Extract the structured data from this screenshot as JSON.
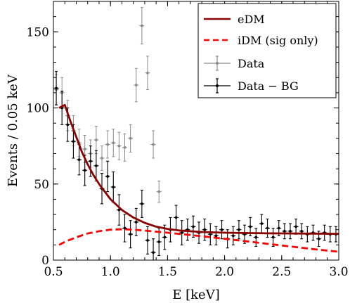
{
  "chart_data": {
    "type": "scatter",
    "xlabel": "E [keV]",
    "ylabel": "Events / 0.05 keV",
    "xlim": [
      0.5,
      3.0
    ],
    "ylim": [
      0,
      170
    ],
    "xticks": [
      "0.5",
      "1.0",
      "1.5",
      "2.0",
      "2.5",
      "3.0"
    ],
    "yticks": [
      "0",
      "50",
      "100",
      "150"
    ],
    "grid": false,
    "legend_position": "top-right",
    "legend": [
      "eDM",
      "iDM (sig only)",
      "Data",
      "Data − BG"
    ],
    "colors": {
      "edm": "#8b0000",
      "idm": "#ff0000",
      "data": "#8a8a8a",
      "data_bg": "#000000"
    },
    "series": [
      {
        "name": "eDM",
        "style": "solid-line",
        "x": [
          0.55,
          0.6,
          0.65,
          0.7,
          0.75,
          0.8,
          0.85,
          0.9,
          0.95,
          1.0,
          1.1,
          1.2,
          1.3,
          1.4,
          1.5,
          1.6,
          1.8,
          2.0,
          2.2,
          2.4,
          2.6,
          2.8,
          3.0
        ],
        "y": [
          100,
          102,
          91,
          81,
          71,
          63,
          56,
          50,
          45,
          40,
          33,
          28,
          24.5,
          22,
          20.5,
          19.5,
          18.5,
          18,
          17.8,
          17.6,
          17.5,
          17.4,
          17.3
        ]
      },
      {
        "name": "iDM (sig only)",
        "style": "dashed-line",
        "x": [
          0.55,
          0.6,
          0.7,
          0.8,
          0.9,
          1.0,
          1.1,
          1.2,
          1.3,
          1.4,
          1.5,
          1.6,
          1.8,
          2.0,
          2.2,
          2.4,
          2.6,
          2.8,
          3.0
        ],
        "y": [
          10,
          12,
          15,
          17.5,
          19,
          20,
          20.3,
          20,
          19.4,
          18.7,
          18,
          17.3,
          15.7,
          14,
          12.3,
          10.5,
          8.8,
          7,
          5.5
        ]
      },
      {
        "name": "Data",
        "x": [
          0.525,
          0.575,
          0.625,
          0.675,
          0.725,
          0.775,
          0.825,
          0.875,
          0.925,
          0.975,
          1.025,
          1.075,
          1.125,
          1.175,
          1.225,
          1.275,
          1.325,
          1.375,
          1.425
        ],
        "y": [
          112,
          110,
          95,
          85,
          77,
          73,
          70,
          79,
          67,
          76,
          77,
          75,
          74,
          80,
          115,
          154,
          123,
          76,
          45
        ],
        "err": [
          10,
          10,
          10,
          10,
          9,
          9,
          9,
          9,
          8,
          9,
          9,
          9,
          9,
          9,
          11,
          12,
          11,
          9,
          7
        ]
      },
      {
        "name": "Data − BG",
        "x": [
          0.525,
          0.575,
          0.625,
          0.675,
          0.725,
          0.775,
          0.825,
          0.875,
          0.925,
          0.975,
          1.025,
          1.075,
          1.125,
          1.175,
          1.225,
          1.275,
          1.325,
          1.375,
          1.425,
          1.475,
          1.525,
          1.575,
          1.625,
          1.675,
          1.725,
          1.775,
          1.825,
          1.875,
          1.925,
          1.975,
          2.025,
          2.075,
          2.125,
          2.175,
          2.225,
          2.275,
          2.325,
          2.375,
          2.425,
          2.475,
          2.525,
          2.575,
          2.625,
          2.675,
          2.725,
          2.775,
          2.825,
          2.875,
          2.925,
          2.975
        ],
        "y": [
          113,
          100,
          89,
          78,
          66,
          59,
          65,
          62,
          47,
          55,
          48,
          33,
          21,
          17,
          25,
          37,
          13,
          5,
          12,
          15,
          20,
          28,
          18,
          20,
          22,
          18,
          20,
          17,
          16,
          20,
          14,
          16,
          20,
          17,
          22,
          15,
          24,
          21,
          15,
          21,
          19,
          19,
          22,
          19,
          17,
          18,
          14,
          18,
          17,
          17
        ],
        "err": [
          11,
          11,
          11,
          11,
          10,
          10,
          10,
          10,
          10,
          10,
          10,
          10,
          9,
          9,
          9,
          9,
          9,
          9,
          9,
          8,
          8,
          8,
          8,
          7,
          7,
          7,
          7,
          7,
          6,
          6,
          6,
          6,
          6,
          6,
          6,
          6,
          6,
          6,
          6,
          5,
          5,
          5,
          5,
          5,
          5,
          5,
          5,
          5,
          5,
          5
        ]
      }
    ]
  }
}
